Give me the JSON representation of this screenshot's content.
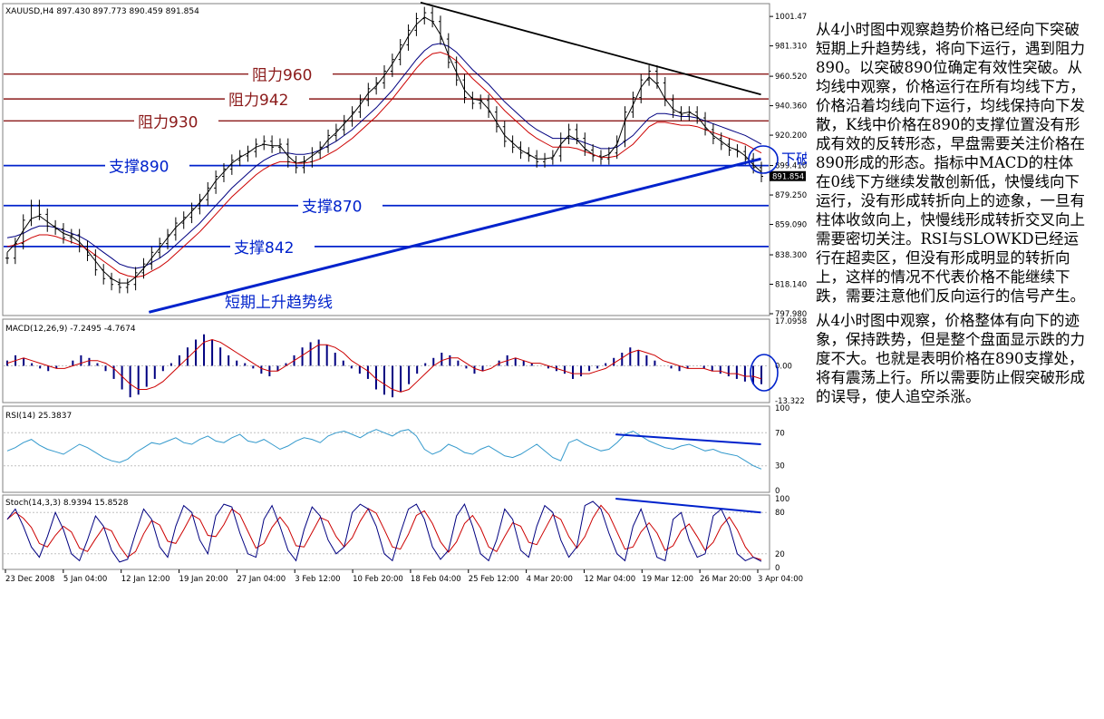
{
  "chart_data": {
    "type": "line",
    "symbol_header": "XAUUSD,H4 897.430 897.773 890.459 891.854",
    "x_ticks": [
      "23 Dec 2008",
      "5 Jan 04:00",
      "12 Jan 12:00",
      "19 Jan 20:00",
      "27 Jan 04:00",
      "3 Feb 12:00",
      "10 Feb 20:00",
      "18 Feb 04:00",
      "25 Feb 12:00",
      "4 Mar 20:00",
      "12 Mar 04:00",
      "19 Mar 12:00",
      "26 Mar 20:00",
      "3 Apr 04:00"
    ],
    "price_axis": {
      "ticks": [
        "1001.470",
        "981.310",
        "960.520",
        "940.360",
        "920.200",
        "899.410",
        "879.250",
        "859.090",
        "838.300",
        "818.140",
        "797.980"
      ],
      "range": [
        797.98,
        1009.0
      ],
      "current_price": "891.854"
    },
    "price_series": [
      {
        "name": "close",
        "values": [
          836,
          846,
          862,
          872,
          866,
          858,
          856,
          850,
          852,
          844,
          838,
          828,
          822,
          818,
          816,
          818,
          826,
          832,
          840,
          846,
          852,
          860,
          864,
          870,
          876,
          884,
          892,
          897,
          903,
          906,
          909,
          914,
          916,
          912,
          914,
          902,
          898,
          902,
          908,
          912,
          920,
          924,
          930,
          936,
          944,
          952,
          956,
          964,
          972,
          982,
          992,
          1000,
          1004,
          998,
          986,
          970,
          958,
          946,
          942,
          944,
          936,
          926,
          916,
          912,
          908,
          906,
          902,
          904,
          906,
          918,
          924,
          918,
          910,
          906,
          904,
          908,
          916,
          936,
          946,
          958,
          964,
          956,
          944,
          936,
          934,
          936,
          932,
          924,
          918,
          914,
          910,
          909,
          904,
          898,
          892
        ]
      },
      {
        "name": "ma_fast",
        "values": [
          840,
          846,
          855,
          863,
          865,
          861,
          857,
          853,
          851,
          847,
          841,
          834,
          827,
          822,
          819,
          819,
          823,
          829,
          836,
          843,
          850,
          857,
          862,
          868,
          874,
          881,
          889,
          895,
          901,
          905,
          908,
          912,
          914,
          913,
          913,
          906,
          901,
          902,
          906,
          910,
          917,
          922,
          928,
          934,
          941,
          949,
          954,
          961,
          969,
          978,
          988,
          996,
          1001,
          998,
          989,
          975,
          963,
          951,
          945,
          944,
          938,
          929,
          920,
          915,
          910,
          907,
          904,
          904,
          905,
          914,
          920,
          917,
          911,
          907,
          905,
          907,
          914,
          930,
          941,
          953,
          960,
          955,
          945,
          938,
          935,
          936,
          933,
          926,
          920,
          916,
          912,
          910,
          906,
          900,
          895
        ]
      },
      {
        "name": "ma_slow",
        "values": [
          850,
          851,
          853,
          856,
          858,
          858,
          857,
          855,
          853,
          851,
          848,
          844,
          840,
          836,
          832,
          830,
          829,
          830,
          833,
          836,
          840,
          845,
          850,
          855,
          860,
          866,
          872,
          878,
          884,
          889,
          894,
          899,
          903,
          906,
          908,
          908,
          907,
          907,
          908,
          910,
          913,
          916,
          920,
          924,
          929,
          934,
          939,
          945,
          951,
          958,
          965,
          972,
          978,
          982,
          983,
          981,
          977,
          971,
          965,
          960,
          955,
          949,
          943,
          938,
          933,
          928,
          924,
          921,
          918,
          918,
          918,
          917,
          915,
          913,
          911,
          911,
          912,
          916,
          920,
          926,
          932,
          935,
          935,
          934,
          933,
          933,
          932,
          930,
          928,
          926,
          924,
          922,
          920,
          917,
          914
        ]
      }
    ],
    "hlines": [
      {
        "label": "阻力960",
        "price": 962
      },
      {
        "label": "阻力942",
        "price": 945
      },
      {
        "label": "阻力930",
        "price": 930
      },
      {
        "label": "支撑890",
        "price": 899.4
      },
      {
        "label": "支撑870",
        "price": 872
      },
      {
        "label": "支撑842",
        "price": 844
      }
    ],
    "trendline_resistance": {
      "from": [
        0.545,
        1011
      ],
      "to": [
        0.99,
        948
      ]
    },
    "trendline_support": {
      "from": [
        0.19,
        799
      ],
      "to": [
        0.99,
        904
      ]
    },
    "trend_label": "短期上升趋势线",
    "break_label": "下破",
    "macd": {
      "header": "MACD(12,26,9) -7.2495 -4.7674",
      "ticks": [
        "17.0958",
        "0.00",
        "-13.322"
      ],
      "range": [
        -13.322,
        17.0958
      ],
      "histogram": [
        2,
        4,
        3,
        1,
        -1,
        -2,
        -1,
        0,
        2,
        4,
        3,
        1,
        -2,
        -5,
        -9,
        -12,
        -11,
        -8,
        -5,
        -2,
        1,
        4,
        7,
        10,
        12,
        10,
        7,
        4,
        2,
        1,
        -1,
        -3,
        -4,
        -2,
        1,
        4,
        7,
        9,
        10,
        8,
        5,
        2,
        -1,
        -3,
        -5,
        -9,
        -11,
        -12,
        -10,
        -7,
        -3,
        1,
        3,
        5,
        4,
        2,
        -1,
        -3,
        -2,
        0,
        2,
        4,
        3,
        2,
        1,
        0,
        -1,
        -2,
        -3,
        -5,
        -4,
        -2,
        -1,
        1,
        3,
        5,
        7,
        6,
        4,
        2,
        0,
        -1,
        -2,
        -1,
        0,
        -1,
        -2,
        -3,
        -4,
        -5,
        -6,
        -7,
        -7
      ],
      "signal": [
        1,
        2,
        3,
        2,
        1,
        0,
        -1,
        -1,
        0,
        1,
        2,
        2,
        1,
        -1,
        -4,
        -7,
        -9,
        -9,
        -8,
        -6,
        -3,
        0,
        3,
        6,
        9,
        10,
        9,
        7,
        5,
        3,
        1,
        -1,
        -2,
        -2,
        0,
        2,
        4,
        6,
        8,
        8,
        7,
        5,
        2,
        0,
        -2,
        -5,
        -7,
        -9,
        -10,
        -9,
        -6,
        -3,
        0,
        2,
        3,
        3,
        1,
        -1,
        -2,
        -1,
        1,
        2,
        3,
        2,
        1,
        1,
        0,
        -1,
        -2,
        -3,
        -3,
        -3,
        -2,
        -1,
        1,
        3,
        5,
        6,
        5,
        4,
        2,
        1,
        0,
        -1,
        -1,
        -1,
        -2,
        -2,
        -3,
        -3,
        -4,
        -4,
        -5
      ]
    },
    "rsi": {
      "header": "RSI(14) 25.3837",
      "ticks": [
        "100",
        "70",
        "30",
        "0"
      ],
      "values": [
        48,
        52,
        58,
        62,
        55,
        50,
        47,
        44,
        50,
        56,
        52,
        46,
        40,
        36,
        34,
        38,
        46,
        52,
        58,
        56,
        60,
        64,
        58,
        56,
        62,
        66,
        60,
        58,
        64,
        68,
        60,
        58,
        62,
        56,
        50,
        54,
        60,
        64,
        62,
        58,
        66,
        70,
        72,
        68,
        64,
        70,
        74,
        70,
        66,
        72,
        74,
        66,
        50,
        44,
        48,
        56,
        52,
        46,
        44,
        50,
        54,
        48,
        42,
        40,
        44,
        50,
        56,
        48,
        40,
        36,
        58,
        62,
        56,
        52,
        48,
        50,
        58,
        68,
        72,
        66,
        60,
        56,
        52,
        50,
        54,
        56,
        52,
        48,
        50,
        46,
        44,
        42,
        36,
        30,
        26
      ]
    },
    "stoch": {
      "header": "Stoch(14,3,3) 8.9394 15.8528",
      "ticks": [
        "100",
        "80",
        "20",
        "0"
      ],
      "values": [
        70,
        85,
        60,
        30,
        15,
        45,
        80,
        55,
        20,
        10,
        40,
        75,
        60,
        25,
        8,
        12,
        50,
        85,
        70,
        30,
        15,
        60,
        90,
        80,
        40,
        20,
        75,
        92,
        88,
        50,
        20,
        15,
        70,
        90,
        60,
        25,
        10,
        55,
        88,
        75,
        40,
        20,
        30,
        80,
        92,
        85,
        60,
        20,
        10,
        50,
        85,
        92,
        70,
        30,
        12,
        25,
        75,
        92,
        60,
        20,
        10,
        40,
        85,
        70,
        25,
        15,
        60,
        90,
        80,
        40,
        15,
        30,
        90,
        96,
        85,
        50,
        20,
        10,
        60,
        85,
        50,
        15,
        10,
        70,
        80,
        40,
        15,
        20,
        75,
        85,
        60,
        20,
        10,
        15,
        9
      ]
    },
    "rsi_divergence": {
      "from": [
        0.8,
        68
      ],
      "to": [
        0.99,
        56
      ]
    },
    "stoch_divergence": {
      "from": [
        0.8,
        100
      ],
      "to": [
        0.99,
        80
      ]
    }
  },
  "notes": [
    "从4小时图中观察趋势价格已经向下突破短期上升趋势线，将向下运行，遇到阻力890。以突破890位确定有效性突破。从均线中观察，价格运行在所有均线下方，价格沿着均线向下运行，均线保持向下发散，K线中价格在890的支撑位置没有形成有效的反转形态，早盘需要关注价格在890形成的形态。指标中MACD的柱体在0线下方继续发散创新低，快慢线向下运行，没有形成转折向上的迹象，一旦有柱体收敛向上，快慢线形成转折交叉向上需要密切关注。RSI与SLOWKD已经运行在超卖区，但没有形成明显的转折向上，这样的情况不代表价格不能继续下跌，需要注意他们反向运行的信号产生。",
    "从4小时图中观察，价格整体有向下的迹象，保持跌势，但是整个盘面显示跌的力度不大。也就是表明价格在890支撑处，将有震荡上行。所以需要防止假突破形成的误导，使人追空杀涨。"
  ],
  "colors": {
    "candle": "#000000",
    "ma_fast": "#000000",
    "ma_slow": "#000080",
    "ma_red": "#cc0000",
    "resistance": "#8b1a1a",
    "support": "#0022cc",
    "macd_hist": "#000080",
    "signal": "#cc0000",
    "rsi": "#3399cc",
    "stoch_k": "#000080",
    "stoch_d": "#cc0000"
  }
}
